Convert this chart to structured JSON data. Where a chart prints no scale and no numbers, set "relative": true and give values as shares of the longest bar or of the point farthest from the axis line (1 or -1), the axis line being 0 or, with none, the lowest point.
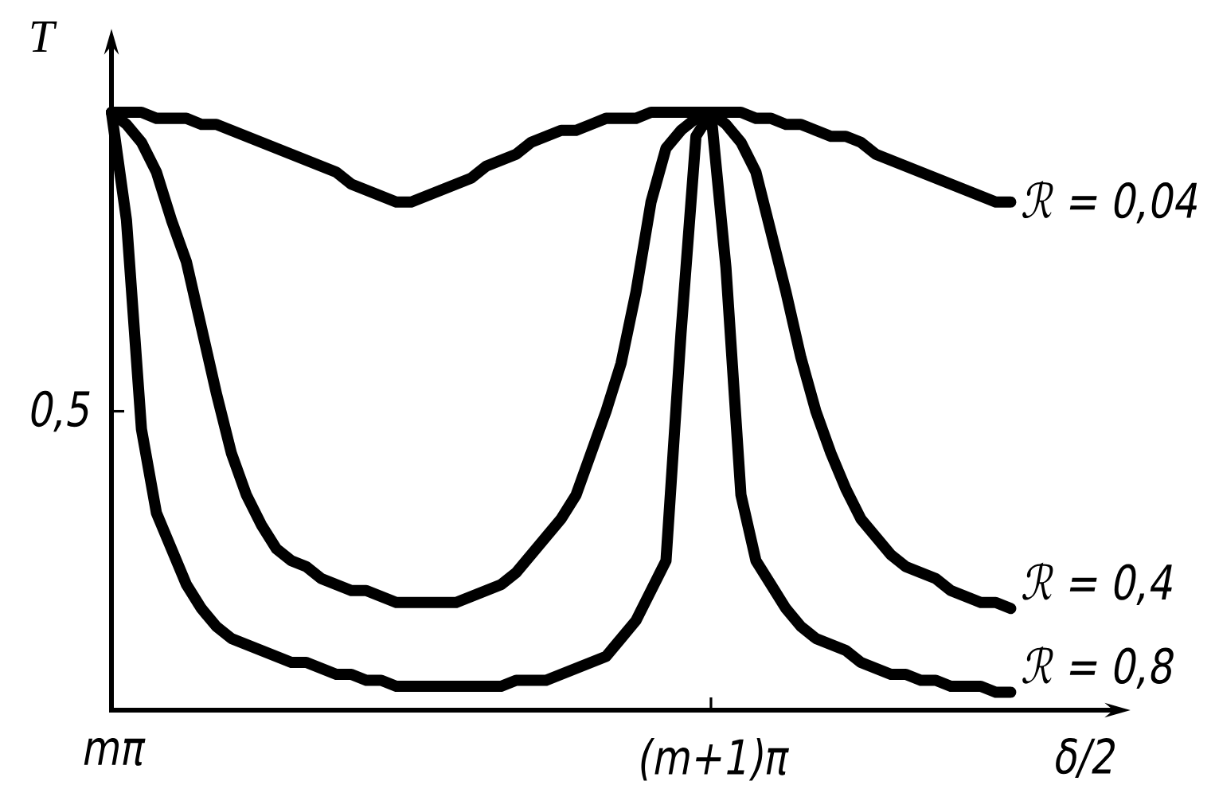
{
  "chart_data": {
    "type": "line",
    "relative": true,
    "xlabel": "δ/2",
    "ylabel": "T",
    "categories": [
      "mπ",
      null,
      null,
      null,
      null,
      null,
      null,
      null,
      null,
      null,
      null,
      null,
      null,
      null,
      null,
      null,
      null,
      null,
      null,
      null,
      null,
      null,
      null,
      null,
      null,
      null,
      null,
      null,
      null,
      null,
      null,
      null,
      null,
      null,
      null,
      null,
      null,
      null,
      null,
      null,
      "(m+1)π",
      null,
      null,
      null,
      null,
      null,
      null,
      null,
      null,
      null,
      null,
      null,
      null,
      null,
      null,
      null,
      null,
      null,
      null,
      null,
      null
    ],
    "annotations": [
      "0,5"
    ],
    "series": [
      {
        "name": "ℛ = 0,04",
        "color": "#000000",
        "values": [
          1.0,
          1.0,
          1.0,
          0.99,
          0.99,
          0.99,
          0.98,
          0.98,
          0.97,
          0.96,
          0.95,
          0.94,
          0.93,
          0.92,
          0.91,
          0.9,
          0.88,
          0.87,
          0.86,
          0.85,
          0.85,
          0.86,
          0.87,
          0.88,
          0.89,
          0.91,
          0.92,
          0.93,
          0.95,
          0.96,
          0.97,
          0.97,
          0.98,
          0.99,
          0.99,
          0.99,
          1.0,
          1.0,
          1.0,
          1.0,
          1.0,
          1.0,
          1.0,
          0.99,
          0.99,
          0.98,
          0.98,
          0.97,
          0.96,
          0.96,
          0.95,
          0.93,
          0.92,
          0.91,
          0.9,
          0.89,
          0.88,
          0.87,
          0.86,
          0.85,
          0.85
        ]
      },
      {
        "name": "ℛ = 0,4",
        "color": "#000000",
        "values": [
          1.0,
          0.98,
          0.95,
          0.9,
          0.82,
          0.75,
          0.64,
          0.53,
          0.43,
          0.36,
          0.31,
          0.27,
          0.25,
          0.24,
          0.22,
          0.21,
          0.2,
          0.2,
          0.19,
          0.18,
          0.18,
          0.18,
          0.18,
          0.18,
          0.19,
          0.2,
          0.21,
          0.23,
          0.26,
          0.29,
          0.32,
          0.36,
          0.43,
          0.5,
          0.58,
          0.7,
          0.85,
          0.94,
          0.97,
          0.99,
          1.0,
          0.98,
          0.95,
          0.9,
          0.8,
          0.7,
          0.59,
          0.5,
          0.43,
          0.37,
          0.32,
          0.29,
          0.26,
          0.24,
          0.23,
          0.22,
          0.2,
          0.19,
          0.18,
          0.18,
          0.17
        ]
      },
      {
        "name": "ℛ = 0,8",
        "color": "#000000",
        "values": [
          1.0,
          0.82,
          0.47,
          0.33,
          0.27,
          0.21,
          0.17,
          0.14,
          0.12,
          0.11,
          0.1,
          0.09,
          0.08,
          0.08,
          0.07,
          0.06,
          0.06,
          0.05,
          0.05,
          0.04,
          0.04,
          0.04,
          0.04,
          0.04,
          0.04,
          0.04,
          0.04,
          0.05,
          0.05,
          0.05,
          0.06,
          0.07,
          0.08,
          0.09,
          0.12,
          0.15,
          0.2,
          0.25,
          0.63,
          0.96,
          1.0,
          0.74,
          0.36,
          0.25,
          0.21,
          0.17,
          0.14,
          0.12,
          0.11,
          0.1,
          0.08,
          0.07,
          0.06,
          0.06,
          0.05,
          0.05,
          0.04,
          0.04,
          0.04,
          0.03,
          0.03
        ]
      }
    ]
  }
}
